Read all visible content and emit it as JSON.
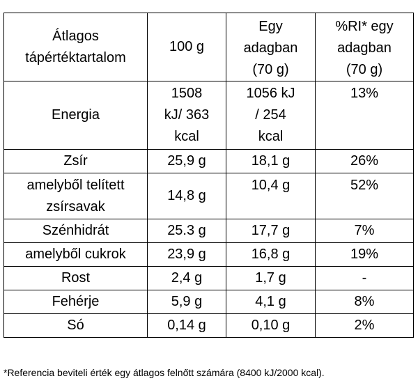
{
  "table": {
    "header": {
      "name": "Átlagos\ntápértéktartalom",
      "per100": "100 g",
      "perServing": "Egy\nadagban\n(70 g)",
      "riServing": "%RI* egy\nadagban\n(70 g)"
    },
    "rows": [
      {
        "name": "Energia",
        "per100": "1508\nkJ/ 363\nkcal",
        "perServing": "1056 kJ\n/ 254\nkcal",
        "ri": "13%"
      },
      {
        "name": "Zsír",
        "per100": "25,9 g",
        "perServing": "18,1 g",
        "ri": "26%"
      },
      {
        "name": "amelyből telített\nzsírsavak",
        "per100": "14,8 g",
        "perServing": "10,4 g",
        "ri": "52%"
      },
      {
        "name": "Szénhidrát",
        "per100": "25.3 g",
        "perServing": "17,7 g",
        "ri": "7%"
      },
      {
        "name": "amelyből cukrok",
        "per100": "23,9 g",
        "perServing": "16,8 g",
        "ri": "19%"
      },
      {
        "name": "Rost",
        "per100": "2,4 g",
        "perServing": "1,7 g",
        "ri": "-"
      },
      {
        "name": "Fehérje",
        "per100": "5,9 g",
        "perServing": "4,1 g",
        "ri": "8%"
      },
      {
        "name": "Só",
        "per100": "0,14 g",
        "perServing": "0,10 g",
        "ri": "2%"
      }
    ]
  },
  "footnote": "*Referencia beviteli érték egy átlagos felnőtt számára (8400 kJ/2000 kcal)."
}
